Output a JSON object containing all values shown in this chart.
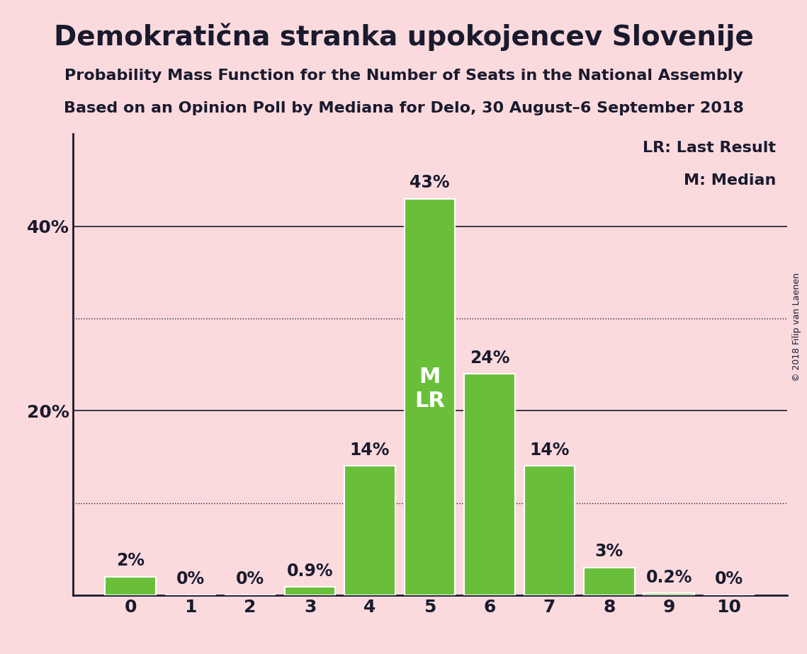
{
  "title": "Demokratična stranka upokojencev Slovenije",
  "subtitle1": "Probability Mass Function for the Number of Seats in the National Assembly",
  "subtitle2": "Based on an Opinion Poll by Mediana for Delo, 30 August–6 September 2018",
  "copyright": "© 2018 Filip van Laenen",
  "categories": [
    0,
    1,
    2,
    3,
    4,
    5,
    6,
    7,
    8,
    9,
    10
  ],
  "values": [
    2.0,
    0.0,
    0.0,
    0.9,
    14.0,
    43.0,
    24.0,
    14.0,
    3.0,
    0.2,
    0.0
  ],
  "labels": [
    "2%",
    "0%",
    "0%",
    "0.9%",
    "14%",
    "43%",
    "24%",
    "14%",
    "3%",
    "0.2%",
    "0%"
  ],
  "bar_color": "#6abf3a",
  "bar_edge_color": "#ffffff",
  "background_color": "#fadadd",
  "text_color": "#1a1a2e",
  "ylim": [
    0,
    50
  ],
  "solid_gridlines": [
    20,
    40
  ],
  "dotted_gridlines": [
    10,
    30
  ],
  "median_bar": 5,
  "ml_label": "M\nLR",
  "legend_lr": "LR: Last Result",
  "legend_m": "M: Median",
  "title_fontsize": 28,
  "subtitle_fontsize": 16,
  "label_fontsize": 17,
  "axis_fontsize": 18,
  "legend_fontsize": 16,
  "ml_fontsize": 22,
  "copyright_fontsize": 9
}
